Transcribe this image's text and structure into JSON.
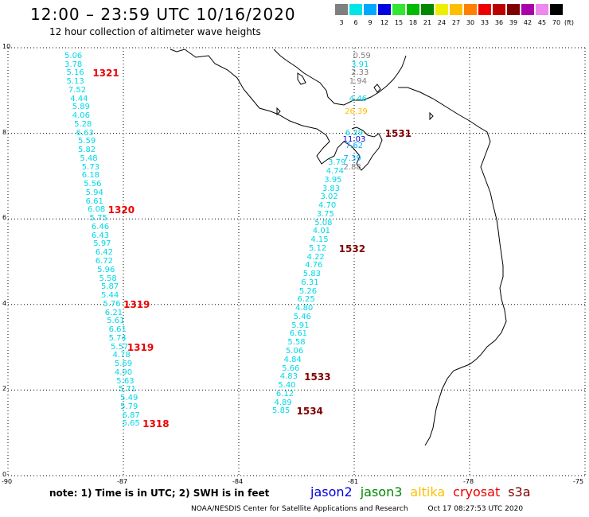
{
  "header": {
    "title": "12:00 – 23:59 UTC 10/16/2020",
    "subtitle": "12 hour collection of altimeter wave heights"
  },
  "legend": {
    "unit_label": "(ft)",
    "bins": [
      {
        "label": "3",
        "color": "#7f7f7f"
      },
      {
        "label": "6",
        "color": "#00e5e5"
      },
      {
        "label": "9",
        "color": "#00a8ff"
      },
      {
        "label": "12",
        "color": "#0000e0"
      },
      {
        "label": "15",
        "color": "#33e633"
      },
      {
        "label": "18",
        "color": "#00bb00"
      },
      {
        "label": "21",
        "color": "#008800"
      },
      {
        "label": "24",
        "color": "#eeee00"
      },
      {
        "label": "27",
        "color": "#ffbf00"
      },
      {
        "label": "30",
        "color": "#ff7f00"
      },
      {
        "label": "33",
        "color": "#ee0000"
      },
      {
        "label": "36",
        "color": "#bb0000"
      },
      {
        "label": "39",
        "color": "#800000"
      },
      {
        "label": "42",
        "color": "#aa00aa"
      },
      {
        "label": "45",
        "color": "#ee88ee"
      },
      {
        "label": "70",
        "color": "#000000"
      }
    ]
  },
  "axes": {
    "y_ticks": [
      "10",
      "8",
      "6",
      "4",
      "2",
      "0"
    ],
    "x_ticks": [
      "-90",
      "-87",
      "-84",
      "-81",
      "-78",
      "-75"
    ]
  },
  "tracks": [
    {
      "color": "#00d8e8",
      "points": [
        [
          "5.06",
          -88.3,
          9.8
        ],
        [
          "3.78",
          -88.3,
          9.6
        ],
        [
          "5.16",
          -88.25,
          9.4
        ],
        [
          "5.13",
          -88.25,
          9.2
        ],
        [
          "7.52",
          -88.2,
          9.0
        ],
        [
          "4.44",
          -88.15,
          8.8
        ],
        [
          "5.89",
          -88.1,
          8.6
        ],
        [
          "4.06",
          -88.1,
          8.4
        ],
        [
          "5.28",
          -88.05,
          8.2
        ],
        [
          "6.63",
          -88.0,
          8.0
        ],
        [
          "5.59",
          -87.95,
          7.8
        ],
        [
          "5.82",
          -87.95,
          7.6
        ],
        [
          "5.48",
          -87.9,
          7.4
        ],
        [
          "5.73",
          -87.85,
          7.2
        ],
        [
          "6.18",
          -87.85,
          7.0
        ],
        [
          "5.56",
          -87.8,
          6.8
        ],
        [
          "5.94",
          -87.75,
          6.6
        ],
        [
          "6.61",
          -87.75,
          6.4
        ],
        [
          "6.08",
          -87.7,
          6.2
        ],
        [
          "5.75",
          -87.65,
          6.0
        ],
        [
          "6.46",
          -87.6,
          5.8
        ],
        [
          "6.43",
          -87.6,
          5.6
        ],
        [
          "5.97",
          -87.55,
          5.4
        ],
        [
          "6.42",
          -87.5,
          5.2
        ],
        [
          "6.72",
          -87.5,
          5.0
        ],
        [
          "5.96",
          -87.45,
          4.8
        ],
        [
          "5.58",
          -87.4,
          4.6
        ],
        [
          "5.87",
          -87.35,
          4.4
        ],
        [
          "5.44",
          -87.35,
          4.2
        ],
        [
          "5.76",
          -87.3,
          4.0
        ],
        [
          "6.21",
          -87.25,
          3.8
        ],
        [
          "5.61",
          -87.2,
          3.6
        ],
        [
          "6.61",
          -87.15,
          3.4
        ],
        [
          "5.74",
          -87.15,
          3.2
        ],
        [
          "5.57",
          -87.1,
          3.0
        ],
        [
          "4.78",
          -87.05,
          2.8
        ],
        [
          "5.69",
          -87.0,
          2.6
        ],
        [
          "4.90",
          -87.0,
          2.4
        ],
        [
          "5.63",
          -86.95,
          2.2
        ],
        [
          "5.71",
          -86.9,
          2.0
        ],
        [
          "5.49",
          -86.85,
          1.8
        ],
        [
          "5.79",
          -86.85,
          1.6
        ],
        [
          "6.87",
          -86.8,
          1.4
        ],
        [
          "5.65",
          -86.8,
          1.2
        ]
      ]
    },
    {
      "color": "#00d8e8",
      "points": [
        [
          "3.91",
          -80.85,
          9.6
        ],
        [
          "4.46",
          -80.9,
          8.8
        ],
        [
          "6.39",
          -81.0,
          8.0
        ],
        [
          "3.79",
          -81.45,
          7.3
        ],
        [
          "4.74",
          -81.5,
          7.1
        ],
        [
          "3.95",
          -81.55,
          6.9
        ],
        [
          "3.83",
          -81.6,
          6.7
        ],
        [
          "3.02",
          -81.65,
          6.5
        ],
        [
          "4.70",
          -81.7,
          6.3
        ],
        [
          "3.75",
          -81.75,
          6.1
        ],
        [
          "5.08",
          -81.8,
          5.9
        ],
        [
          "4.01",
          -81.85,
          5.7
        ],
        [
          "4.15",
          -81.9,
          5.5
        ],
        [
          "5.12",
          -81.95,
          5.3
        ],
        [
          "4.22",
          -82.0,
          5.1
        ],
        [
          "4.76",
          -82.05,
          4.9
        ],
        [
          "5.83",
          -82.1,
          4.7
        ],
        [
          "6.31",
          -82.15,
          4.5
        ],
        [
          "5.26",
          -82.2,
          4.3
        ],
        [
          "6.25",
          -82.25,
          4.1
        ],
        [
          "4.80",
          -82.3,
          3.9
        ],
        [
          "5.46",
          -82.35,
          3.7
        ],
        [
          "5.91",
          -82.4,
          3.5
        ],
        [
          "6.61",
          -82.45,
          3.3
        ],
        [
          "5.58",
          -82.5,
          3.1
        ],
        [
          "5.06",
          -82.55,
          2.9
        ],
        [
          "4.84",
          -82.6,
          2.7
        ],
        [
          "5.66",
          -82.65,
          2.5
        ],
        [
          "4.83",
          -82.7,
          2.3
        ],
        [
          "5.40",
          -82.75,
          2.1
        ],
        [
          "6.12",
          -82.8,
          1.9
        ],
        [
          "4.89",
          -82.85,
          1.7
        ],
        [
          "5.85",
          -82.9,
          1.5
        ]
      ]
    },
    {
      "color": "#7f7f7f",
      "points": [
        [
          "0.59",
          -80.8,
          9.8
        ],
        [
          "2.33",
          -80.85,
          9.4
        ],
        [
          "1.94",
          -80.9,
          9.2
        ],
        [
          "2.88",
          -81.05,
          7.2
        ]
      ]
    },
    {
      "color": "#ffbf00",
      "points": [
        [
          "26.39",
          -80.95,
          8.5
        ]
      ]
    },
    {
      "color": "#0000e0",
      "points": [
        [
          "11.03",
          -81.0,
          7.85
        ]
      ]
    },
    {
      "color": "#00a8ff",
      "points": [
        [
          "7.62",
          -81.0,
          7.7
        ],
        [
          "7.39",
          -81.05,
          7.4
        ]
      ]
    }
  ],
  "passes": [
    {
      "label": "1321",
      "color": "#ee0000",
      "lon": -87.8,
      "lat": 9.4
    },
    {
      "label": "1320",
      "color": "#ee0000",
      "lon": -87.4,
      "lat": 6.2
    },
    {
      "label": "1319",
      "color": "#ee0000",
      "lon": -87.0,
      "lat": 4.0
    },
    {
      "label": "1319",
      "color": "#ee0000",
      "lon": -86.9,
      "lat": 3.0
    },
    {
      "label": "1318",
      "color": "#ee0000",
      "lon": -86.5,
      "lat": 1.2
    },
    {
      "label": "1531",
      "color": "#800000",
      "lon": -80.2,
      "lat": 8.0
    },
    {
      "label": "1532",
      "color": "#800000",
      "lon": -81.4,
      "lat": 5.3
    },
    {
      "label": "1533",
      "color": "#800000",
      "lon": -82.3,
      "lat": 2.3
    },
    {
      "label": "1534",
      "color": "#800000",
      "lon": -82.5,
      "lat": 1.5
    }
  ],
  "footer": {
    "note": "note:  1) Time is in UTC;  2) SWH is in feet",
    "satellites": [
      {
        "name": "jason2",
        "color": "#0000e0"
      },
      {
        "name": "jason3",
        "color": "#008800"
      },
      {
        "name": "altika",
        "color": "#ffbf00"
      },
      {
        "name": "cryosat",
        "color": "#ee0000"
      },
      {
        "name": "s3a",
        "color": "#800000"
      }
    ],
    "credit": "NOAA/NESDIS Center for Satellite Applications and Research",
    "timestamp": "Oct 17 08:27:53 UTC 2020"
  }
}
